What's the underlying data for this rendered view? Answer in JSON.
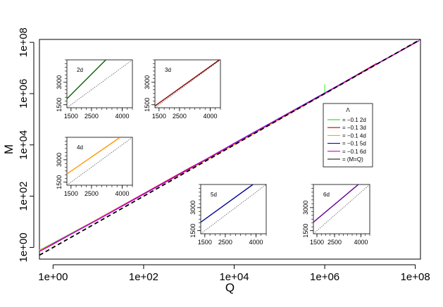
{
  "chart_data": {
    "type": "line",
    "xlabel": "Q",
    "ylabel": "M",
    "xscale": "log10",
    "yscale": "log10",
    "xlim": [
      0.5,
      130000000
    ],
    "ylim": [
      0.35,
      130000000
    ],
    "x_ticks": [
      {
        "value": 1,
        "label": "1e+00"
      },
      {
        "value": 100,
        "label": "1e+02"
      },
      {
        "value": 10000,
        "label": "1e+04"
      },
      {
        "value": 1000000,
        "label": "1e+06"
      },
      {
        "value": 100000000,
        "label": "1e+08"
      }
    ],
    "y_ticks": [
      {
        "value": 1,
        "label": "1e+00"
      },
      {
        "value": 100,
        "label": "1e+02"
      },
      {
        "value": 10000,
        "label": "1e+04"
      },
      {
        "value": 1000000,
        "label": "1e+06"
      },
      {
        "value": 100000000,
        "label": "1e+08"
      }
    ],
    "legend": {
      "title": "Λ",
      "entries": [
        {
          "label": "= −0.1 2d",
          "color": "#00dd00"
        },
        {
          "label": "= −0.1 3d",
          "color": "#cc0000"
        },
        {
          "label": "= −0.1 4d",
          "color": "#ffa500"
        },
        {
          "label": "= −0.1 5d",
          "color": "#0000ee"
        },
        {
          "label": "= −0.1 6d",
          "color": "#cc00cc"
        },
        {
          "label": "= (M=Q)",
          "color": "#000000"
        }
      ]
    },
    "series": [
      {
        "name": "2d",
        "color": "#66ff66",
        "points": [
          [
            0.5,
            0.78
          ],
          [
            1,
            1.5
          ],
          [
            10,
            13
          ],
          [
            100,
            120
          ],
          [
            1000,
            1150
          ],
          [
            10000,
            11000
          ],
          [
            100000,
            105000
          ],
          [
            1000000,
            1020000
          ],
          [
            1000000,
            2300000
          ]
        ]
      },
      {
        "name": "3d",
        "color": "#cc0000",
        "points": [
          [
            0.5,
            0.7
          ],
          [
            1,
            1.35
          ],
          [
            10,
            13
          ],
          [
            100,
            125
          ],
          [
            1000,
            1200
          ],
          [
            10000,
            10500
          ],
          [
            100000,
            102000
          ],
          [
            1000000,
            1000000
          ],
          [
            14000000,
            15000000
          ]
        ]
      },
      {
        "name": "4d",
        "color": "#ffa500",
        "points": [
          [
            0.5,
            0.75
          ],
          [
            1,
            1.4
          ],
          [
            10,
            13
          ],
          [
            100,
            120
          ],
          [
            1000,
            1100
          ],
          [
            10000,
            10200
          ],
          [
            100000,
            101000
          ],
          [
            1000000,
            1000000
          ],
          [
            10000000,
            10000000
          ],
          [
            100000000,
            100000000
          ]
        ]
      },
      {
        "name": "5d",
        "color": "#0000ee",
        "points": [
          [
            1,
            1.4
          ],
          [
            10,
            12.5
          ],
          [
            100,
            120
          ],
          [
            1000,
            1150
          ],
          [
            10000,
            11500
          ],
          [
            100000,
            110000
          ],
          [
            1000000,
            1050000
          ],
          [
            10000000,
            10300000
          ],
          [
            120000000,
            115000000
          ]
        ]
      },
      {
        "name": "6d",
        "color": "#cc00cc",
        "points": [
          [
            0.5,
            0.7
          ],
          [
            1,
            1.4
          ],
          [
            10,
            12.5
          ],
          [
            100,
            120
          ],
          [
            1000,
            1150
          ],
          [
            10000,
            11200
          ],
          [
            100000,
            108000
          ],
          [
            1000000,
            1030000
          ],
          [
            10000000,
            10200000
          ],
          [
            120000000,
            115000000
          ]
        ]
      },
      {
        "name": "M=Q",
        "color": "#000000",
        "dashed": true,
        "points": [
          [
            0.5,
            0.5
          ],
          [
            130000000,
            130000000
          ]
        ]
      }
    ],
    "insets": [
      {
        "title": "2d",
        "color": "#006600",
        "xlim": [
          1300,
          4500
        ],
        "ylim": [
          1300,
          4500
        ],
        "x_ticks": [
          {
            "value": 1500,
            "label": "1500"
          },
          {
            "value": 2500,
            "label": "2500"
          },
          {
            "value": 4000,
            "label": "4000"
          }
        ],
        "y_ticks": [
          {
            "value": 1500,
            "label": "1500"
          },
          {
            "value": 3000,
            "label": "3000"
          }
        ],
        "line": [
          [
            1300,
            1900
          ],
          [
            3200,
            4500
          ]
        ]
      },
      {
        "title": "3d",
        "color": "#880000",
        "xlim": [
          1300,
          4500
        ],
        "ylim": [
          1300,
          4500
        ],
        "x_ticks": [
          {
            "value": 1500,
            "label": "1500"
          },
          {
            "value": 2500,
            "label": "2500"
          },
          {
            "value": 4000,
            "label": "4000"
          }
        ],
        "y_ticks": [
          {
            "value": 1500,
            "label": "1500"
          },
          {
            "value": 3000,
            "label": "3000"
          }
        ],
        "line": [
          [
            1300,
            1420
          ],
          [
            4500,
            4550
          ]
        ]
      },
      {
        "title": "4d",
        "color": "#ff9900",
        "xlim": [
          1300,
          4500
        ],
        "ylim": [
          1300,
          4500
        ],
        "x_ticks": [
          {
            "value": 1500,
            "label": "1500"
          },
          {
            "value": 2500,
            "label": "2500"
          },
          {
            "value": 4000,
            "label": "4000"
          }
        ],
        "y_ticks": [
          {
            "value": 1500,
            "label": "1500"
          },
          {
            "value": 3000,
            "label": "3000"
          }
        ],
        "line": [
          [
            1300,
            2050
          ],
          [
            3900,
            4500
          ]
        ]
      },
      {
        "title": "5d",
        "color": "#000099",
        "xlim": [
          1300,
          4500
        ],
        "ylim": [
          1300,
          4500
        ],
        "x_ticks": [
          {
            "value": 1500,
            "label": "1500"
          },
          {
            "value": 2500,
            "label": "2500"
          },
          {
            "value": 4000,
            "label": "4000"
          }
        ],
        "y_ticks": [
          {
            "value": 1500,
            "label": "1500"
          },
          {
            "value": 3000,
            "label": "3000"
          }
        ],
        "line": [
          [
            1300,
            2050
          ],
          [
            3850,
            4500
          ]
        ]
      },
      {
        "title": "6d",
        "color": "#660099",
        "xlim": [
          1300,
          4500
        ],
        "ylim": [
          1300,
          4500
        ],
        "x_ticks": [
          {
            "value": 1500,
            "label": "1500"
          },
          {
            "value": 2500,
            "label": "2500"
          },
          {
            "value": 4000,
            "label": "4000"
          }
        ],
        "y_ticks": [
          {
            "value": 1500,
            "label": "1500"
          },
          {
            "value": 3000,
            "label": "3000"
          }
        ],
        "line": [
          [
            1300,
            2050
          ],
          [
            3850,
            4500
          ]
        ]
      }
    ]
  }
}
